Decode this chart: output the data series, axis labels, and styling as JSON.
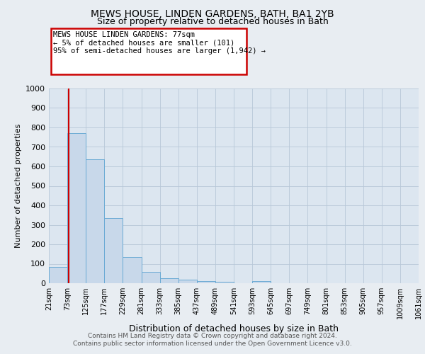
{
  "title1": "MEWS HOUSE, LINDEN GARDENS, BATH, BA1 2YB",
  "title2": "Size of property relative to detached houses in Bath",
  "xlabel": "Distribution of detached houses by size in Bath",
  "ylabel": "Number of detached properties",
  "bin_labels": [
    "21sqm",
    "73sqm",
    "125sqm",
    "177sqm",
    "229sqm",
    "281sqm",
    "333sqm",
    "385sqm",
    "437sqm",
    "489sqm",
    "541sqm",
    "593sqm",
    "645sqm",
    "697sqm",
    "749sqm",
    "801sqm",
    "853sqm",
    "905sqm",
    "957sqm",
    "1009sqm",
    "1061sqm"
  ],
  "bin_edges": [
    21,
    73,
    125,
    177,
    229,
    281,
    333,
    385,
    437,
    489,
    541,
    593,
    645,
    697,
    749,
    801,
    853,
    905,
    957,
    1009,
    1061
  ],
  "bar_heights": [
    83,
    770,
    635,
    335,
    133,
    58,
    25,
    20,
    12,
    8,
    0,
    12,
    0,
    0,
    0,
    0,
    0,
    0,
    0,
    0
  ],
  "bar_color": "#c8d8ea",
  "bar_edge_color": "#6aaad4",
  "vline_x": 77,
  "vline_color": "#cc0000",
  "annotation_text": "MEWS HOUSE LINDEN GARDENS: 77sqm\n← 5% of detached houses are smaller (101)\n95% of semi-detached houses are larger (1,942) →",
  "annotation_box_color": "#cc0000",
  "ylim": [
    0,
    1000
  ],
  "yticks": [
    0,
    100,
    200,
    300,
    400,
    500,
    600,
    700,
    800,
    900,
    1000
  ],
  "footer1": "Contains HM Land Registry data © Crown copyright and database right 2024.",
  "footer2": "Contains public sector information licensed under the Open Government Licence v3.0.",
  "bg_color": "#e8edf2",
  "plot_bg_color": "#dce6f0",
  "grid_color": "#b8c8d8"
}
